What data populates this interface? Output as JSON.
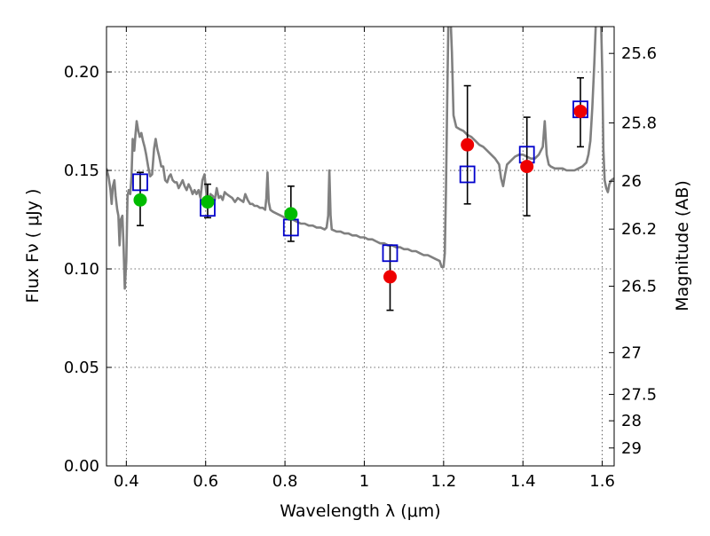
{
  "chart_data": {
    "type": "scatter",
    "xlabel": "Wavelength  λ (μm)",
    "ylabel": "Flux  Fν  ( μJy )",
    "y2label": "Magnitude (AB)",
    "xlim": [
      0.35,
      1.63
    ],
    "ylim": [
      0.0,
      0.223
    ],
    "x_ticks": [
      {
        "value": 0.4,
        "label": "0.4"
      },
      {
        "value": 0.6,
        "label": "0.6"
      },
      {
        "value": 0.8,
        "label": "0.8"
      },
      {
        "value": 1.0,
        "label": "1"
      },
      {
        "value": 1.2,
        "label": "1.2"
      },
      {
        "value": 1.4,
        "label": "1.4"
      },
      {
        "value": 1.6,
        "label": "1.6"
      }
    ],
    "y_ticks": [
      {
        "value": 0.0,
        "label": "0.00"
      },
      {
        "value": 0.05,
        "label": "0.05"
      },
      {
        "value": 0.1,
        "label": "0.10"
      },
      {
        "value": 0.15,
        "label": "0.15"
      },
      {
        "value": 0.2,
        "label": "0.20"
      }
    ],
    "y2_ticks": [
      {
        "flux": 0.2094,
        "label": "25.6"
      },
      {
        "flux": 0.1741,
        "label": "25.8"
      },
      {
        "flux": 0.1445,
        "label": "26"
      },
      {
        "flux": 0.1202,
        "label": "26.2"
      },
      {
        "flux": 0.0912,
        "label": "26.5"
      },
      {
        "flux": 0.0575,
        "label": "27"
      },
      {
        "flux": 0.0363,
        "label": "27.5"
      },
      {
        "flux": 0.0229,
        "label": "28"
      },
      {
        "flux": 0.0091,
        "label": "29"
      }
    ],
    "grid": true,
    "legend": "none",
    "series": [
      {
        "type": "line",
        "color": "#808080",
        "points": [
          [
            0.35,
            0.151
          ],
          [
            0.355,
            0.147
          ],
          [
            0.36,
            0.14
          ],
          [
            0.363,
            0.133
          ],
          [
            0.366,
            0.142
          ],
          [
            0.37,
            0.145
          ],
          [
            0.373,
            0.137
          ],
          [
            0.377,
            0.13
          ],
          [
            0.38,
            0.127
          ],
          [
            0.383,
            0.112
          ],
          [
            0.386,
            0.125
          ],
          [
            0.39,
            0.127
          ],
          [
            0.393,
            0.112
          ],
          [
            0.396,
            0.09
          ],
          [
            0.4,
            0.104
          ],
          [
            0.403,
            0.137
          ],
          [
            0.406,
            0.14
          ],
          [
            0.41,
            0.138
          ],
          [
            0.413,
            0.147
          ],
          [
            0.416,
            0.166
          ],
          [
            0.42,
            0.16
          ],
          [
            0.423,
            0.168
          ],
          [
            0.426,
            0.175
          ],
          [
            0.43,
            0.17
          ],
          [
            0.434,
            0.167
          ],
          [
            0.438,
            0.169
          ],
          [
            0.442,
            0.165
          ],
          [
            0.446,
            0.162
          ],
          [
            0.45,
            0.158
          ],
          [
            0.455,
            0.152
          ],
          [
            0.46,
            0.147
          ],
          [
            0.465,
            0.148
          ],
          [
            0.47,
            0.161
          ],
          [
            0.474,
            0.166
          ],
          [
            0.478,
            0.161
          ],
          [
            0.483,
            0.157
          ],
          [
            0.488,
            0.152
          ],
          [
            0.493,
            0.152
          ],
          [
            0.498,
            0.145
          ],
          [
            0.503,
            0.144
          ],
          [
            0.508,
            0.147
          ],
          [
            0.512,
            0.148
          ],
          [
            0.517,
            0.145
          ],
          [
            0.522,
            0.144
          ],
          [
            0.527,
            0.144
          ],
          [
            0.532,
            0.141
          ],
          [
            0.537,
            0.143
          ],
          [
            0.542,
            0.145
          ],
          [
            0.547,
            0.142
          ],
          [
            0.552,
            0.14
          ],
          [
            0.557,
            0.143
          ],
          [
            0.562,
            0.141
          ],
          [
            0.567,
            0.138
          ],
          [
            0.572,
            0.14
          ],
          [
            0.577,
            0.138
          ],
          [
            0.582,
            0.14
          ],
          [
            0.587,
            0.136
          ],
          [
            0.592,
            0.145
          ],
          [
            0.597,
            0.148
          ],
          [
            0.602,
            0.138
          ],
          [
            0.607,
            0.133
          ],
          [
            0.612,
            0.138
          ],
          [
            0.618,
            0.137
          ],
          [
            0.623,
            0.135
          ],
          [
            0.628,
            0.141
          ],
          [
            0.633,
            0.136
          ],
          [
            0.638,
            0.137
          ],
          [
            0.643,
            0.135
          ],
          [
            0.648,
            0.139
          ],
          [
            0.653,
            0.138
          ],
          [
            0.66,
            0.137
          ],
          [
            0.667,
            0.136
          ],
          [
            0.674,
            0.134
          ],
          [
            0.681,
            0.136
          ],
          [
            0.688,
            0.135
          ],
          [
            0.695,
            0.134
          ],
          [
            0.7,
            0.138
          ],
          [
            0.706,
            0.135
          ],
          [
            0.712,
            0.133
          ],
          [
            0.718,
            0.133
          ],
          [
            0.723,
            0.132
          ],
          [
            0.73,
            0.132
          ],
          [
            0.737,
            0.131
          ],
          [
            0.744,
            0.131
          ],
          [
            0.75,
            0.13
          ],
          [
            0.753,
            0.136
          ],
          [
            0.756,
            0.149
          ],
          [
            0.759,
            0.134
          ],
          [
            0.763,
            0.13
          ],
          [
            0.77,
            0.129
          ],
          [
            0.78,
            0.128
          ],
          [
            0.79,
            0.127
          ],
          [
            0.8,
            0.126
          ],
          [
            0.81,
            0.125
          ],
          [
            0.82,
            0.125
          ],
          [
            0.83,
            0.124
          ],
          [
            0.84,
            0.123
          ],
          [
            0.85,
            0.123
          ],
          [
            0.86,
            0.122
          ],
          [
            0.87,
            0.122
          ],
          [
            0.88,
            0.121
          ],
          [
            0.89,
            0.121
          ],
          [
            0.9,
            0.12
          ],
          [
            0.905,
            0.121
          ],
          [
            0.909,
            0.127
          ],
          [
            0.912,
            0.15
          ],
          [
            0.915,
            0.127
          ],
          [
            0.918,
            0.12
          ],
          [
            0.93,
            0.119
          ],
          [
            0.94,
            0.119
          ],
          [
            0.95,
            0.118
          ],
          [
            0.96,
            0.118
          ],
          [
            0.97,
            0.117
          ],
          [
            0.98,
            0.117
          ],
          [
            0.99,
            0.116
          ],
          [
            1.0,
            0.116
          ],
          [
            1.01,
            0.115
          ],
          [
            1.02,
            0.115
          ],
          [
            1.03,
            0.114
          ],
          [
            1.04,
            0.113
          ],
          [
            1.05,
            0.113
          ],
          [
            1.06,
            0.112
          ],
          [
            1.07,
            0.112
          ],
          [
            1.08,
            0.111
          ],
          [
            1.09,
            0.111
          ],
          [
            1.1,
            0.11
          ],
          [
            1.11,
            0.11
          ],
          [
            1.12,
            0.109
          ],
          [
            1.13,
            0.109
          ],
          [
            1.14,
            0.108
          ],
          [
            1.15,
            0.107
          ],
          [
            1.16,
            0.107
          ],
          [
            1.17,
            0.106
          ],
          [
            1.18,
            0.105
          ],
          [
            1.19,
            0.104
          ],
          [
            1.195,
            0.101
          ],
          [
            1.2,
            0.101
          ],
          [
            1.203,
            0.108
          ],
          [
            1.206,
            0.14
          ],
          [
            1.209,
            0.185
          ],
          [
            1.212,
            0.225
          ],
          [
            1.218,
            0.225
          ],
          [
            1.221,
            0.21
          ],
          [
            1.225,
            0.178
          ],
          [
            1.232,
            0.172
          ],
          [
            1.24,
            0.171
          ],
          [
            1.25,
            0.17
          ],
          [
            1.26,
            0.168
          ],
          [
            1.27,
            0.167
          ],
          [
            1.28,
            0.165
          ],
          [
            1.29,
            0.163
          ],
          [
            1.3,
            0.162
          ],
          [
            1.31,
            0.16
          ],
          [
            1.32,
            0.158
          ],
          [
            1.33,
            0.156
          ],
          [
            1.34,
            0.153
          ],
          [
            1.345,
            0.146
          ],
          [
            1.35,
            0.142
          ],
          [
            1.355,
            0.148
          ],
          [
            1.36,
            0.153
          ],
          [
            1.37,
            0.155
          ],
          [
            1.38,
            0.157
          ],
          [
            1.39,
            0.158
          ],
          [
            1.4,
            0.158
          ],
          [
            1.41,
            0.157
          ],
          [
            1.42,
            0.156
          ],
          [
            1.43,
            0.156
          ],
          [
            1.44,
            0.158
          ],
          [
            1.45,
            0.162
          ],
          [
            1.455,
            0.175
          ],
          [
            1.46,
            0.158
          ],
          [
            1.465,
            0.153
          ],
          [
            1.47,
            0.152
          ],
          [
            1.48,
            0.151
          ],
          [
            1.49,
            0.151
          ],
          [
            1.5,
            0.151
          ],
          [
            1.51,
            0.15
          ],
          [
            1.52,
            0.15
          ],
          [
            1.53,
            0.15
          ],
          [
            1.54,
            0.151
          ],
          [
            1.55,
            0.152
          ],
          [
            1.56,
            0.154
          ],
          [
            1.565,
            0.158
          ],
          [
            1.57,
            0.165
          ],
          [
            1.575,
            0.182
          ],
          [
            1.58,
            0.205
          ],
          [
            1.584,
            0.225
          ],
          [
            1.597,
            0.225
          ],
          [
            1.6,
            0.2
          ],
          [
            1.603,
            0.16
          ],
          [
            1.606,
            0.145
          ],
          [
            1.61,
            0.141
          ],
          [
            1.614,
            0.139
          ],
          [
            1.618,
            0.143
          ],
          [
            1.623,
            0.145
          ],
          [
            1.63,
            0.146
          ]
        ]
      },
      {
        "type": "errorbar",
        "color": "#000000",
        "points": [
          {
            "x": 0.435,
            "low": 0.122,
            "high": 0.149
          },
          {
            "x": 0.605,
            "low": 0.126,
            "high": 0.143
          },
          {
            "x": 0.815,
            "low": 0.114,
            "high": 0.142
          },
          {
            "x": 1.065,
            "low": 0.079,
            "high": 0.112
          },
          {
            "x": 1.26,
            "low": 0.133,
            "high": 0.193
          },
          {
            "x": 1.41,
            "low": 0.127,
            "high": 0.177
          },
          {
            "x": 1.545,
            "low": 0.162,
            "high": 0.197
          }
        ]
      },
      {
        "type": "scatter",
        "marker": "square-open",
        "color": "#0000cc",
        "points": [
          [
            0.435,
            0.144
          ],
          [
            0.605,
            0.131
          ],
          [
            0.815,
            0.121
          ],
          [
            1.065,
            0.108
          ],
          [
            1.26,
            0.148
          ],
          [
            1.41,
            0.158
          ],
          [
            1.545,
            0.181
          ]
        ]
      },
      {
        "type": "scatter",
        "marker": "circle",
        "color": "#00bb00",
        "points": [
          [
            0.435,
            0.135
          ],
          [
            0.605,
            0.134
          ],
          [
            0.815,
            0.128
          ]
        ]
      },
      {
        "type": "scatter",
        "marker": "circle",
        "color": "#ee0000",
        "points": [
          [
            1.065,
            0.096
          ],
          [
            1.26,
            0.163
          ],
          [
            1.41,
            0.152
          ],
          [
            1.545,
            0.18
          ]
        ]
      }
    ]
  }
}
